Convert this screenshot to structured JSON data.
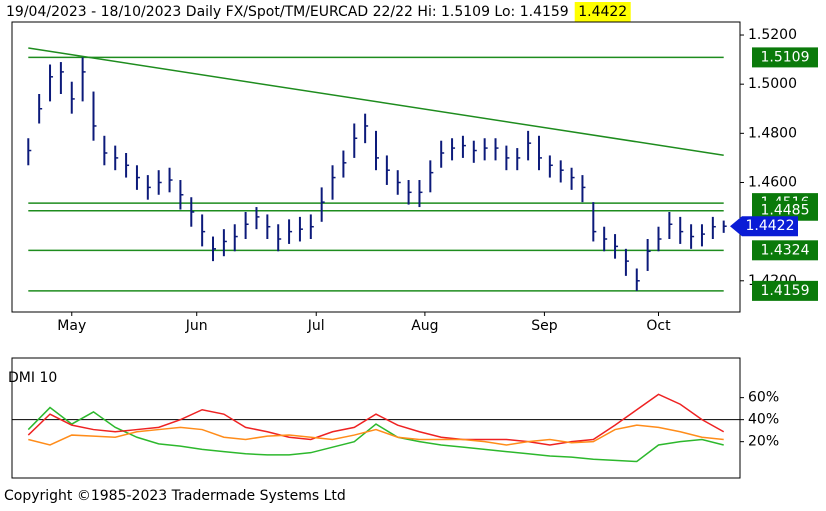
{
  "chart_data": [
    {
      "type": "ohlc",
      "title": "19/04/2023 - 18/10/2023 Daily FX/Spot/TM/EURCAD 22/22 Hi: 1.5109 Lo: 1.4159",
      "last": 1.4422,
      "last_color": "#0a1cd6",
      "highlight_color": "#ffff00",
      "color": "#0c1a7a",
      "x": [
        0,
        2,
        4,
        6,
        8,
        10,
        12,
        14,
        16,
        18,
        20,
        22,
        24,
        26,
        28,
        30,
        32,
        34,
        36,
        38,
        40,
        42,
        44,
        46,
        48,
        50,
        52,
        54,
        56,
        58,
        60,
        62,
        64,
        66,
        68,
        70,
        72,
        74,
        76,
        78,
        80,
        82,
        84,
        86,
        88,
        90,
        92,
        94,
        96,
        98,
        100,
        102,
        104,
        106,
        108,
        110,
        112,
        114,
        116,
        118,
        120,
        122,
        124,
        126,
        128
      ],
      "high": [
        1.478,
        1.496,
        1.508,
        1.509,
        1.501,
        1.5109,
        1.497,
        1.479,
        1.475,
        1.472,
        1.467,
        1.463,
        1.465,
        1.466,
        1.461,
        1.454,
        1.447,
        1.438,
        1.441,
        1.443,
        1.448,
        1.45,
        1.447,
        1.443,
        1.445,
        1.446,
        1.447,
        1.458,
        1.467,
        1.473,
        1.484,
        1.488,
        1.481,
        1.471,
        1.465,
        1.461,
        1.461,
        1.469,
        1.477,
        1.478,
        1.479,
        1.477,
        1.478,
        1.478,
        1.475,
        1.474,
        1.481,
        1.479,
        1.471,
        1.469,
        1.466,
        1.463,
        1.452,
        1.442,
        1.439,
        1.433,
        1.425,
        1.437,
        1.442,
        1.448,
        1.446,
        1.443,
        1.443,
        1.446,
        1.4445
      ],
      "low": [
        1.467,
        1.484,
        1.493,
        1.496,
        1.488,
        1.493,
        1.477,
        1.467,
        1.465,
        1.462,
        1.457,
        1.453,
        1.455,
        1.456,
        1.449,
        1.442,
        1.434,
        1.428,
        1.43,
        1.432,
        1.437,
        1.441,
        1.437,
        1.432,
        1.435,
        1.436,
        1.437,
        1.444,
        1.453,
        1.462,
        1.47,
        1.476,
        1.465,
        1.459,
        1.455,
        1.451,
        1.45,
        1.456,
        1.466,
        1.469,
        1.47,
        1.468,
        1.469,
        1.469,
        1.465,
        1.465,
        1.469,
        1.465,
        1.462,
        1.46,
        1.457,
        1.452,
        1.436,
        1.432,
        1.429,
        1.422,
        1.4159,
        1.424,
        1.432,
        1.437,
        1.435,
        1.433,
        1.434,
        1.437,
        1.4395
      ],
      "close": [
        1.473,
        1.49,
        1.503,
        1.505,
        1.494,
        1.505,
        1.483,
        1.472,
        1.47,
        1.467,
        1.462,
        1.458,
        1.46,
        1.461,
        1.455,
        1.448,
        1.44,
        1.433,
        1.436,
        1.438,
        1.443,
        1.446,
        1.442,
        1.437,
        1.44,
        1.441,
        1.442,
        1.452,
        1.462,
        1.468,
        1.478,
        1.483,
        1.47,
        1.465,
        1.46,
        1.456,
        1.456,
        1.464,
        1.472,
        1.474,
        1.475,
        1.473,
        1.474,
        1.474,
        1.47,
        1.47,
        1.476,
        1.47,
        1.467,
        1.465,
        1.462,
        1.458,
        1.44,
        1.437,
        1.434,
        1.428,
        1.42,
        1.432,
        1.437,
        1.443,
        1.44,
        1.438,
        1.439,
        1.442,
        1.4422
      ],
      "xlim": [
        -3,
        131
      ],
      "xticks": [
        {
          "value": 8,
          "label": "May"
        },
        {
          "value": 31,
          "label": "Jun"
        },
        {
          "value": 53,
          "label": "Jul"
        },
        {
          "value": 73,
          "label": "Aug"
        },
        {
          "value": 95,
          "label": "Sep"
        },
        {
          "value": 116,
          "label": "Oct"
        }
      ],
      "ylim": [
        1.4073,
        1.5253
      ],
      "yticks": [
        {
          "value": 1.42,
          "label": "1.4200"
        },
        {
          "value": 1.44,
          "label": "1.4400"
        },
        {
          "value": 1.46,
          "label": "1.4600"
        },
        {
          "value": 1.48,
          "label": "1.4800"
        },
        {
          "value": 1.5,
          "label": "1.5000"
        },
        {
          "value": 1.52,
          "label": "1.5200"
        }
      ],
      "hlines": [
        1.5109,
        1.4516,
        1.4485,
        1.4324,
        1.4159
      ],
      "hline_color": "#1e8c1e",
      "label_box_color": "#0a7a0a",
      "trendline": {
        "x": [
          0,
          128
        ],
        "y": [
          1.5147,
          1.4711
        ]
      }
    },
    {
      "type": "line",
      "title": "DMI 10",
      "x": [
        0,
        4,
        8,
        12,
        16,
        20,
        24,
        28,
        32,
        36,
        40,
        44,
        48,
        52,
        56,
        60,
        64,
        68,
        72,
        76,
        80,
        84,
        88,
        92,
        96,
        100,
        104,
        108,
        112,
        116,
        120,
        124,
        128
      ],
      "series": [
        {
          "color": "#2db82d",
          "values": [
            31,
            51,
            36,
            47,
            33,
            24,
            18,
            16,
            13,
            11,
            9,
            8,
            8,
            10,
            15,
            20,
            36,
            24,
            20,
            17,
            15,
            13,
            11,
            9,
            7,
            6,
            4,
            3,
            2,
            17,
            20,
            22,
            17
          ]
        },
        {
          "color": "#ee2222",
          "values": [
            26,
            45,
            35,
            31,
            29,
            31,
            33,
            40,
            49,
            45,
            33,
            29,
            24,
            22,
            29,
            33,
            45,
            35,
            29,
            24,
            22,
            22,
            22,
            20,
            17,
            20,
            22,
            35,
            49,
            63,
            54,
            40,
            29
          ]
        },
        {
          "color": "#ff8c1a",
          "values": [
            22,
            17,
            26,
            25,
            24,
            29,
            31,
            33,
            31,
            24,
            22,
            25,
            26,
            24,
            22,
            26,
            31,
            24,
            22,
            22,
            22,
            20,
            17,
            20,
            22,
            19,
            20,
            31,
            35,
            33,
            29,
            24,
            22
          ]
        }
      ],
      "xlim": [
        -3,
        131
      ],
      "ylim": [
        -13,
        96
      ],
      "yticks": [
        {
          "value": 20,
          "label": "20%"
        },
        {
          "value": 40,
          "label": "40%"
        },
        {
          "value": 60,
          "label": "60%"
        }
      ],
      "reference_line": 40
    }
  ],
  "footer": "Copyright ©1985-2023 Tradermade Systems Ltd"
}
